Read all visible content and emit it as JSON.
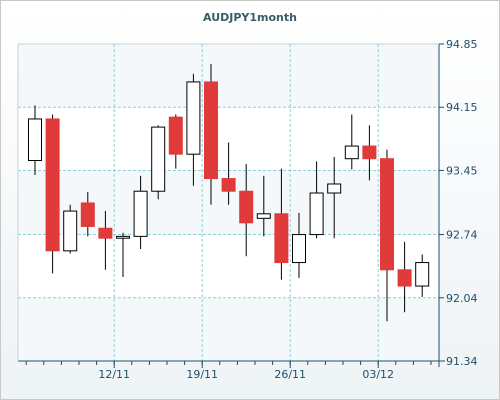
{
  "chart_data": {
    "type": "candlestick",
    "title": "AUDJPY1month",
    "xlabel": "",
    "ylabel": "",
    "ylim": [
      91.34,
      94.85
    ],
    "yticks": [
      "94.85",
      "94.15",
      "93.45",
      "92.74",
      "92.04",
      "91.34"
    ],
    "ytick_values": [
      94.85,
      94.15,
      93.45,
      92.74,
      92.04,
      91.34
    ],
    "xticks": [
      "12/11",
      "19/11",
      "26/11",
      "03/12"
    ],
    "xtick_index": [
      4.5,
      9.5,
      14.5,
      19.5
    ],
    "grid": true,
    "y_axis_position": "right",
    "colors": {
      "up": "#ffffff",
      "down": "#e03a3a",
      "wick": "#000000",
      "grid": "#8fcfd9",
      "axis": "#1e4f6a"
    },
    "candles": [
      {
        "open": 93.56,
        "high": 94.17,
        "low": 93.4,
        "close": 94.02
      },
      {
        "open": 94.02,
        "high": 94.07,
        "low": 92.31,
        "close": 92.56
      },
      {
        "open": 92.56,
        "high": 93.07,
        "low": 92.53,
        "close": 93.0
      },
      {
        "open": 93.09,
        "high": 93.21,
        "low": 92.72,
        "close": 92.83
      },
      {
        "open": 92.81,
        "high": 93.0,
        "low": 92.35,
        "close": 92.7
      },
      {
        "open": 92.7,
        "high": 92.76,
        "low": 92.27,
        "close": 92.72
      },
      {
        "open": 92.72,
        "high": 93.39,
        "low": 92.58,
        "close": 93.22
      },
      {
        "open": 93.22,
        "high": 93.95,
        "low": 93.13,
        "close": 93.93
      },
      {
        "open": 94.04,
        "high": 94.07,
        "low": 93.47,
        "close": 93.63
      },
      {
        "open": 93.63,
        "high": 94.52,
        "low": 93.28,
        "close": 94.43
      },
      {
        "open": 94.43,
        "high": 94.63,
        "low": 93.07,
        "close": 93.36
      },
      {
        "open": 93.36,
        "high": 93.76,
        "low": 93.07,
        "close": 93.22
      },
      {
        "open": 93.22,
        "high": 93.52,
        "low": 92.5,
        "close": 92.87
      },
      {
        "open": 92.92,
        "high": 93.39,
        "low": 92.72,
        "close": 92.97
      },
      {
        "open": 92.97,
        "high": 93.47,
        "low": 92.24,
        "close": 92.43
      },
      {
        "open": 92.43,
        "high": 92.98,
        "low": 92.26,
        "close": 92.74
      },
      {
        "open": 92.74,
        "high": 93.55,
        "low": 92.7,
        "close": 93.2
      },
      {
        "open": 93.2,
        "high": 93.6,
        "low": 92.7,
        "close": 93.3
      },
      {
        "open": 93.58,
        "high": 94.07,
        "low": 93.46,
        "close": 93.72
      },
      {
        "open": 93.72,
        "high": 93.95,
        "low": 93.34,
        "close": 93.58
      },
      {
        "open": 93.58,
        "high": 93.68,
        "low": 91.78,
        "close": 92.35
      },
      {
        "open": 92.35,
        "high": 92.66,
        "low": 91.88,
        "close": 92.17
      },
      {
        "open": 92.17,
        "high": 92.52,
        "low": 92.05,
        "close": 92.43
      }
    ]
  }
}
